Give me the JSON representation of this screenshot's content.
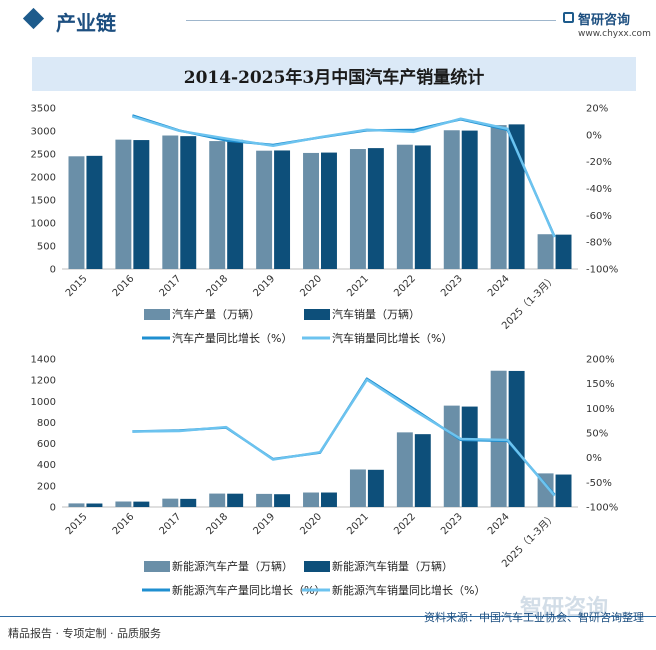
{
  "header": {
    "section_label": "产业链",
    "brand": "智研咨询",
    "site": "www.chyxx.com"
  },
  "title": "2014-2025年3月中国汽车产销量统计",
  "colors": {
    "production_bar": "#6a8fa8",
    "sales_bar": "#0d4f7a",
    "production_line": "#1f8fd0",
    "sales_line": "#6cc3ef"
  },
  "chart_data": [
    {
      "type": "bar",
      "categories": [
        "2015",
        "2016",
        "2017",
        "2018",
        "2019",
        "2020",
        "2021",
        "2022",
        "2023",
        "2024",
        "2025（1-3月）"
      ],
      "series": [
        {
          "name": "汽车产量（万辆）",
          "kind": "bar",
          "axis": "left",
          "values": [
            2450,
            2812,
            2902,
            2781,
            2572,
            2523,
            2608,
            2702,
            3016,
            3128,
            756
          ]
        },
        {
          "name": "汽车销量（万辆）",
          "kind": "bar",
          "axis": "left",
          "values": [
            2460,
            2803,
            2888,
            2808,
            2577,
            2531,
            2628,
            2686,
            3009,
            3144,
            747
          ]
        },
        {
          "name": "汽车产量同比增长（%）",
          "kind": "line",
          "axis": "right",
          "values": [
            null,
            14.5,
            3.2,
            -4.2,
            -7.5,
            -1.9,
            3.4,
            3.6,
            11.6,
            3.7,
            -75.8
          ]
        },
        {
          "name": "汽车销量同比增长（%）",
          "kind": "line",
          "axis": "right",
          "values": [
            null,
            13.7,
            3.0,
            -2.8,
            -8.2,
            -1.8,
            3.8,
            2.2,
            12.0,
            4.5,
            -76.2
          ]
        }
      ],
      "ylim": [
        0,
        3500
      ],
      "yticks": [
        "0",
        "500",
        "1000",
        "1500",
        "2000",
        "2500",
        "3000",
        "3500"
      ],
      "y2lim": [
        -100,
        20
      ],
      "y2ticks": [
        "-100%",
        "-80%",
        "-60%",
        "-40%",
        "-20%",
        "0%",
        "20%"
      ],
      "legend": "bottom"
    },
    {
      "type": "bar",
      "categories": [
        "2015",
        "2016",
        "2017",
        "2018",
        "2019",
        "2020",
        "2021",
        "2022",
        "2023",
        "2024",
        "2025（1-3月）"
      ],
      "series": [
        {
          "name": "新能源汽车产量（万辆）",
          "kind": "bar",
          "axis": "left",
          "values": [
            34,
            52,
            79,
            127,
            124,
            137,
            355,
            706,
            959,
            1289,
            318
          ]
        },
        {
          "name": "新能源汽车销量（万辆）",
          "kind": "bar",
          "axis": "left",
          "values": [
            33,
            51,
            77,
            126,
            121,
            137,
            352,
            689,
            950,
            1287,
            307
          ]
        },
        {
          "name": "新能源汽车产量同比增长（%）",
          "kind": "line",
          "axis": "right",
          "values": [
            null,
            53,
            55,
            61,
            -3,
            10,
            160,
            99,
            36,
            34,
            -75
          ]
        },
        {
          "name": "新能源汽车销量同比增长（%）",
          "kind": "line",
          "axis": "right",
          "values": [
            null,
            53,
            54,
            62,
            -4,
            11,
            158,
            96,
            38,
            36,
            -77
          ]
        }
      ],
      "ylim": [
        0,
        1400
      ],
      "yticks": [
        "0",
        "200",
        "400",
        "600",
        "800",
        "1000",
        "1200",
        "1400"
      ],
      "y2lim": [
        -100,
        200
      ],
      "y2ticks": [
        "-100%",
        "-50%",
        "0%",
        "50%",
        "100%",
        "150%",
        "200%"
      ],
      "legend": "bottom"
    }
  ],
  "footer": {
    "left": "精品报告 · 专项定制 · 品质服务",
    "right": "资料来源：中国汽车工业协会、智研咨询整理"
  }
}
